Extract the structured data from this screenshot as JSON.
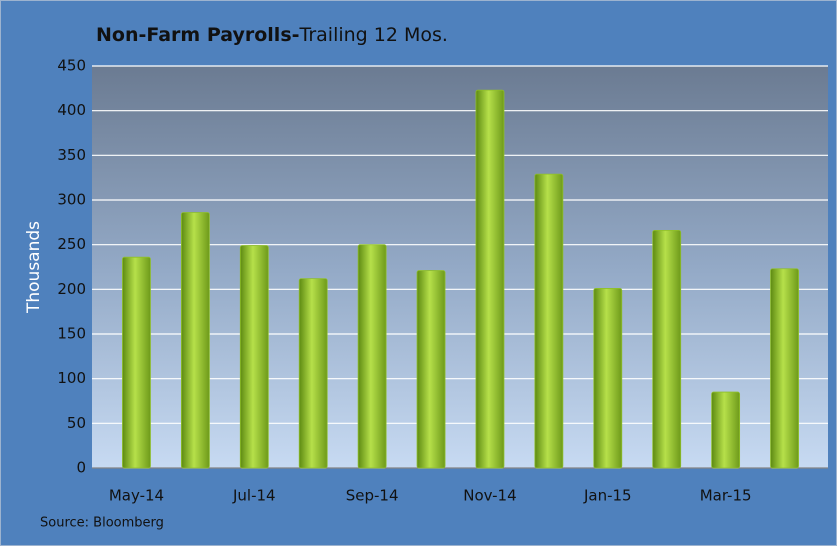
{
  "chart_data": {
    "type": "bar",
    "title": [
      "Non-Farm Payrolls-",
      "Trailing 12 Mos."
    ],
    "y_label": "Thousands",
    "source": "Source: Bloomberg",
    "categories": [
      "May-14",
      null,
      "Jul-14",
      null,
      "Sep-14",
      null,
      "Nov-14",
      null,
      "Jan-15",
      null,
      "Mar-15",
      null
    ],
    "values": [
      236,
      286,
      249,
      212,
      250,
      221,
      423,
      329,
      201,
      266,
      85,
      223
    ],
    "color": "#8fbf2a",
    "ylim": [
      0,
      450
    ],
    "yticks": [
      0,
      50,
      100,
      150,
      200,
      250,
      300,
      350,
      400,
      450
    ],
    "grid": true
  }
}
